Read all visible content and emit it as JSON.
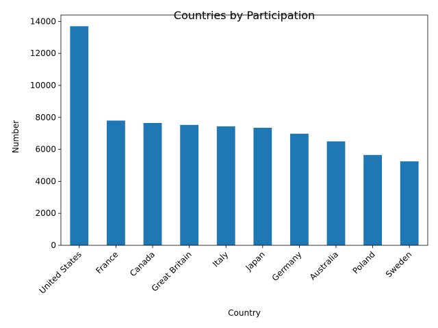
{
  "chart_data": {
    "type": "bar",
    "title": "Countries by Participation",
    "xlabel": "Country",
    "ylabel": "Number",
    "categories": [
      "United States",
      "France",
      "Canada",
      "Great Britain",
      "Italy",
      "Japan",
      "Germany",
      "Australia",
      "Poland",
      "Sweden"
    ],
    "values": [
      13700,
      7800,
      7650,
      7530,
      7440,
      7350,
      6980,
      6500,
      5650,
      5250
    ],
    "ylim": [
      0,
      14400
    ],
    "yticks": [
      0,
      2000,
      4000,
      6000,
      8000,
      10000,
      12000,
      14000
    ],
    "ytick_labels": [
      "0",
      "2000",
      "4000",
      "6000",
      "8000",
      "10000",
      "12000",
      "14000"
    ],
    "grid": false,
    "bar_color": "#1f77b4"
  }
}
